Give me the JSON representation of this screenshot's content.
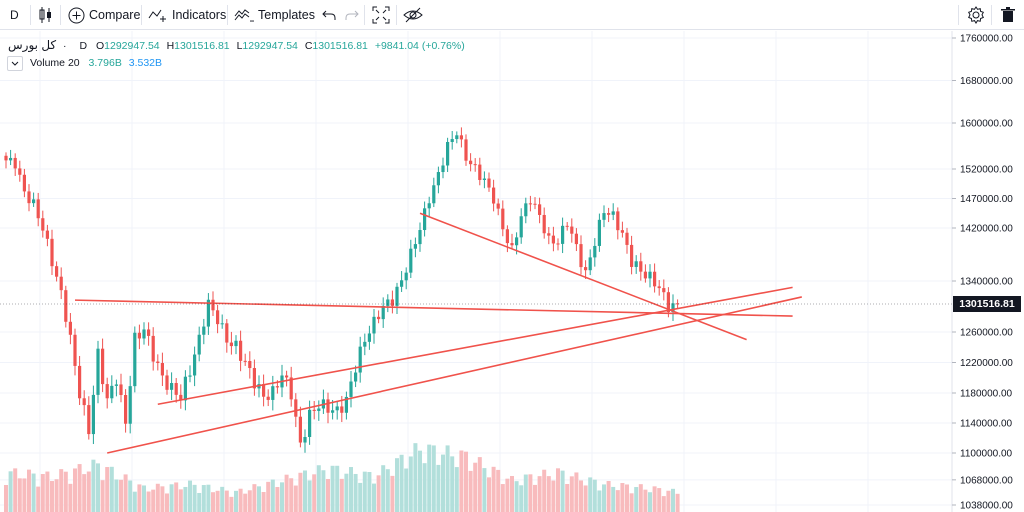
{
  "toolbar": {
    "interval": "D",
    "compare_label": "Compare",
    "indicators_label": "Indicators",
    "templates_label": "Templates"
  },
  "legend": {
    "symbol": "کل بورس",
    "interval": "D",
    "ohlc": [
      {
        "key": "O",
        "value": "1292947.54"
      },
      {
        "key": "H",
        "value": "1301516.81"
      },
      {
        "key": "L",
        "value": "1292947.54"
      },
      {
        "key": "C",
        "value": "1301516.81"
      }
    ],
    "change": "+9841.04 (+0.76%)",
    "volume_label": "Volume 20",
    "volume_value": "3.796B",
    "volume_ma": "3.532B"
  },
  "price_badge": "1301516.81",
  "colors": {
    "up": "#26a69a",
    "down": "#ef5350",
    "vol_up": "#b2dfdb",
    "vol_down": "#f8bbbd",
    "trendline": "#f0524b",
    "grid": "#f0f3fa"
  },
  "chart_data": {
    "type": "candlestick",
    "title": "کل بورس",
    "y_axis_ticks": [
      "1760000.00",
      "1680000.00",
      "1600000.00",
      "1520000.00",
      "1470000.00",
      "1420000.00",
      "1340000.00",
      "1260000.00",
      "1220000.00",
      "1180000.00",
      "1140000.00",
      "1100000.00",
      "1068000.00",
      "1038000.00"
    ],
    "last_price": 1301516.81,
    "close_path": [
      [
        0,
        1535000
      ],
      [
        2,
        1530000
      ],
      [
        4,
        1480000
      ],
      [
        6,
        1460000
      ],
      [
        8,
        1420000
      ],
      [
        10,
        1370000
      ],
      [
        12,
        1320000
      ],
      [
        14,
        1250000
      ],
      [
        16,
        1180000
      ],
      [
        18,
        1130000
      ],
      [
        20,
        1230000
      ],
      [
        22,
        1170000
      ],
      [
        24,
        1200000
      ],
      [
        26,
        1140000
      ],
      [
        28,
        1250000
      ],
      [
        30,
        1265000
      ],
      [
        32,
        1230000
      ],
      [
        34,
        1200000
      ],
      [
        36,
        1185000
      ],
      [
        38,
        1175000
      ],
      [
        40,
        1210000
      ],
      [
        42,
        1250000
      ],
      [
        44,
        1305000
      ],
      [
        46,
        1280000
      ],
      [
        48,
        1250000
      ],
      [
        50,
        1240000
      ],
      [
        52,
        1220000
      ],
      [
        54,
        1195000
      ],
      [
        56,
        1175000
      ],
      [
        58,
        1180000
      ],
      [
        60,
        1205000
      ],
      [
        62,
        1180000
      ],
      [
        64,
        1110000
      ],
      [
        66,
        1150000
      ],
      [
        68,
        1165000
      ],
      [
        70,
        1160000
      ],
      [
        72,
        1155000
      ],
      [
        74,
        1170000
      ],
      [
        76,
        1215000
      ],
      [
        78,
        1250000
      ],
      [
        80,
        1275000
      ],
      [
        82,
        1300000
      ],
      [
        84,
        1310000
      ],
      [
        86,
        1340000
      ],
      [
        88,
        1380000
      ],
      [
        90,
        1420000
      ],
      [
        92,
        1470000
      ],
      [
        94,
        1510000
      ],
      [
        96,
        1560000
      ],
      [
        98,
        1585000
      ],
      [
        100,
        1540000
      ],
      [
        102,
        1520000
      ],
      [
        104,
        1500000
      ],
      [
        106,
        1470000
      ],
      [
        108,
        1420000
      ],
      [
        110,
        1385000
      ],
      [
        112,
        1440000
      ],
      [
        114,
        1470000
      ],
      [
        116,
        1440000
      ],
      [
        118,
        1400000
      ],
      [
        120,
        1400000
      ],
      [
        122,
        1430000
      ],
      [
        124,
        1390000
      ],
      [
        126,
        1350000
      ],
      [
        128,
        1400000
      ],
      [
        130,
        1450000
      ],
      [
        132,
        1440000
      ],
      [
        134,
        1410000
      ],
      [
        136,
        1370000
      ],
      [
        138,
        1355000
      ],
      [
        140,
        1345000
      ],
      [
        142,
        1330000
      ],
      [
        144,
        1300000
      ],
      [
        146,
        1301516
      ]
    ],
    "volume_path": [
      [
        0,
        0.5
      ],
      [
        10,
        0.45
      ],
      [
        20,
        0.6
      ],
      [
        30,
        0.3
      ],
      [
        40,
        0.35
      ],
      [
        50,
        0.25
      ],
      [
        60,
        0.4
      ],
      [
        70,
        0.55
      ],
      [
        80,
        0.45
      ],
      [
        90,
        0.8
      ],
      [
        100,
        0.7
      ],
      [
        110,
        0.4
      ],
      [
        120,
        0.5
      ],
      [
        130,
        0.35
      ],
      [
        140,
        0.3
      ],
      [
        146,
        0.25
      ]
    ],
    "trendlines": [
      {
        "from": [
          15,
          1310000
        ],
        "to": [
          171,
          1285000
        ]
      },
      {
        "from": [
          33,
          1165000
        ],
        "to": [
          171,
          1330000
        ]
      },
      {
        "from": [
          22,
          1100000
        ],
        "to": [
          173,
          1315000
        ]
      },
      {
        "from": [
          90,
          1445000
        ],
        "to": [
          161,
          1250000
        ]
      }
    ]
  }
}
